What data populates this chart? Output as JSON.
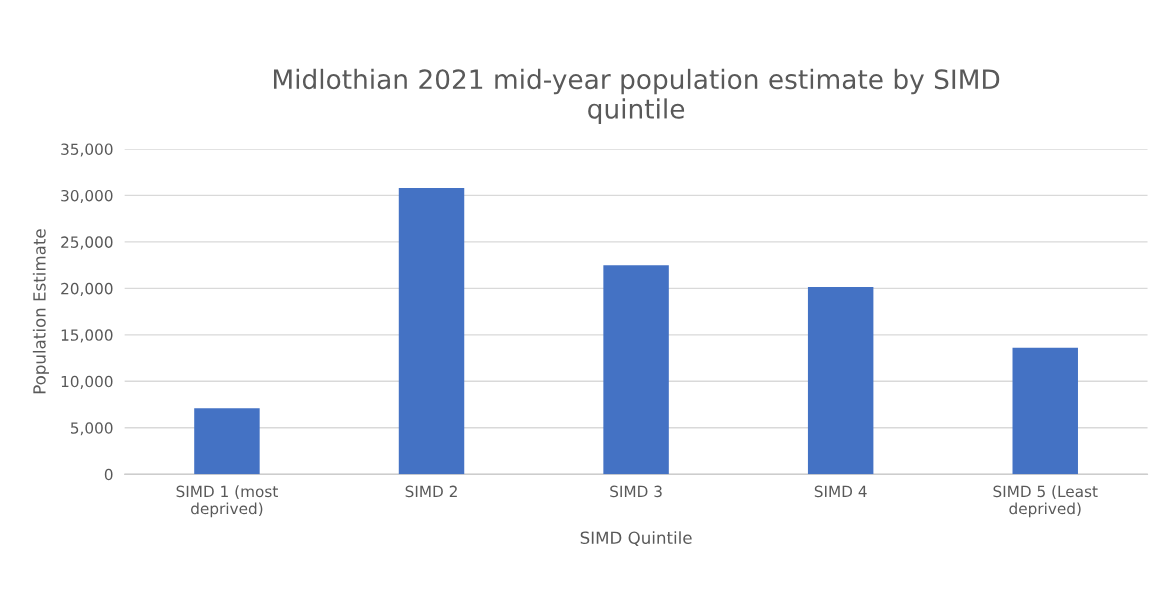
{
  "chart_data": {
    "type": "bar",
    "title": "Midlothian 2021 mid-year population estimate by SIMD quintile",
    "xlabel": "SIMD Quintile",
    "ylabel": "Population Estimate",
    "categories": [
      "SIMD 1 (most deprived)",
      "SIMD 2",
      "SIMD 3",
      "SIMD 4",
      "SIMD 5 (Least deprived)"
    ],
    "values": [
      7100,
      30800,
      22500,
      20150,
      13600
    ],
    "color": "#4472c4",
    "ylim": [
      0,
      35000
    ],
    "yticks": [
      0,
      {
        "value": 5000,
        "label": "5,000"
      },
      {
        "value": 10000,
        "label": "10,000"
      },
      {
        "value": 15000,
        "label": "15,000"
      },
      {
        "value": 20000,
        "label": "20,000"
      },
      {
        "value": 25000,
        "label": "25,000"
      },
      {
        "value": 30000,
        "label": "30,000"
      },
      {
        "value": 35000,
        "label": "35,000"
      }
    ],
    "grid": "y"
  }
}
